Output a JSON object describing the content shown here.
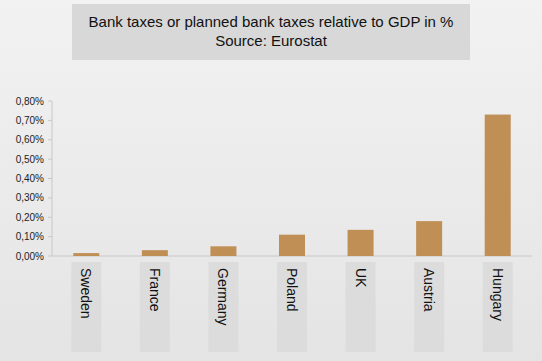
{
  "chart_data": {
    "type": "bar",
    "title": "Bank taxes or planned bank taxes relative to GDP in %",
    "subtitle": "Source: Eurostat",
    "categories": [
      "Sweden",
      "France",
      "Germany",
      "Poland",
      "UK",
      "Austria",
      "Hungary"
    ],
    "values": [
      0.015,
      0.03,
      0.05,
      0.11,
      0.135,
      0.18,
      0.73
    ],
    "color": "#bf8f55",
    "ylim": [
      0,
      0.8
    ],
    "yticks": [
      {
        "value": 0,
        "label": "0,00%"
      },
      {
        "value": 0.1,
        "label": "0,10%"
      },
      {
        "value": 0.2,
        "label": "0,20%"
      },
      {
        "value": 0.3,
        "label": "0,30%"
      },
      {
        "value": 0.4,
        "label": "0,40%"
      },
      {
        "value": 0.5,
        "label": "0,50%"
      },
      {
        "value": 0.6,
        "label": "0,60%"
      },
      {
        "value": 0.7,
        "label": "0,70%"
      },
      {
        "value": 0.8,
        "label": "0,80%"
      }
    ],
    "grid": false
  }
}
